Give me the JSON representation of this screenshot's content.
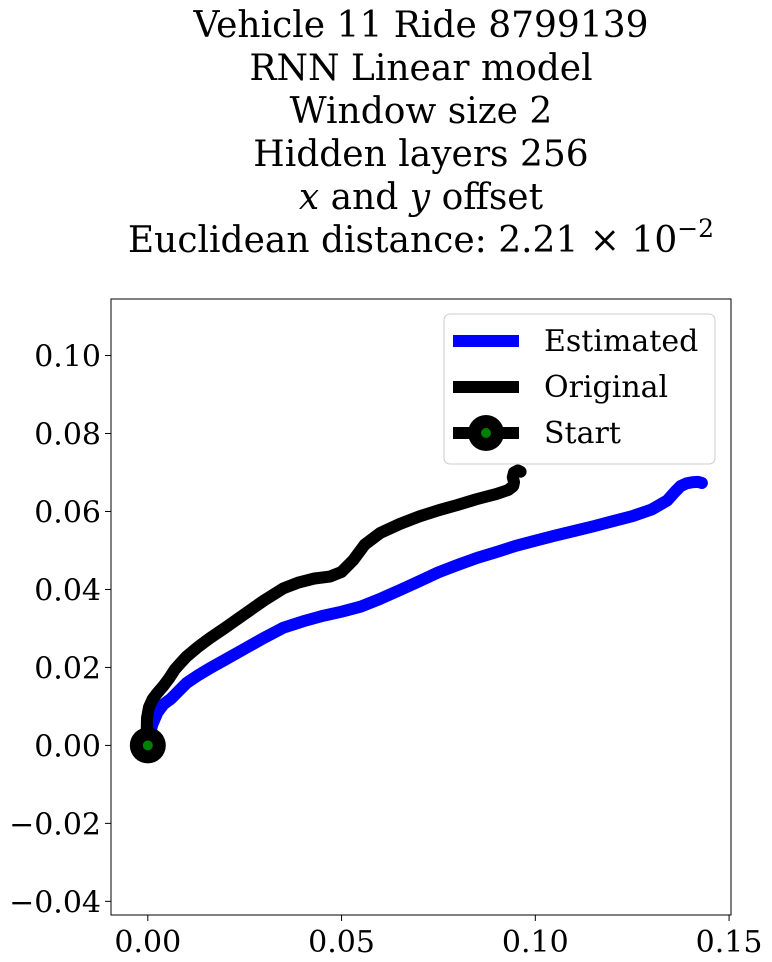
{
  "chart_data": {
    "type": "line",
    "title_lines": [
      "Vehicle 11 Ride 8799139",
      "RNN Linear model",
      "Window size 2",
      "Hidden layers 256"
    ],
    "title_offset_line": {
      "x_var": "x",
      "and_word": " and ",
      "y_var": "y",
      "suffix": " offset"
    },
    "title_distance_line": {
      "prefix": "Euclidean distance: 2.21",
      "times": " × 10",
      "exponent": "−2"
    },
    "xlabel": "",
    "ylabel": "",
    "xlim": [
      -0.0095,
      0.1505
    ],
    "ylim": [
      -0.0435,
      0.1145
    ],
    "xticks": [
      0.0,
      0.05,
      0.1,
      0.15
    ],
    "xtick_labels": [
      "0.00",
      "0.05",
      "0.10",
      "0.15"
    ],
    "yticks": [
      -0.04,
      -0.02,
      0.0,
      0.02,
      0.04,
      0.06,
      0.08,
      0.1
    ],
    "ytick_labels": [
      "−0.04",
      "−0.02",
      "0.00",
      "0.02",
      "0.04",
      "0.06",
      "0.08",
      "0.10"
    ],
    "grid": false,
    "legend_position": "top-right",
    "series": [
      {
        "name": "Estimated",
        "color": "#0000ff",
        "x": [
          0.0,
          0.0004,
          0.0012,
          0.0025,
          0.004,
          0.006,
          0.008,
          0.01,
          0.013,
          0.016,
          0.02,
          0.025,
          0.03,
          0.035,
          0.04,
          0.045,
          0.05,
          0.055,
          0.06,
          0.065,
          0.07,
          0.075,
          0.08,
          0.085,
          0.09,
          0.095,
          0.1,
          0.105,
          0.11,
          0.115,
          0.12,
          0.125,
          0.13,
          0.134,
          0.136,
          0.1375,
          0.139,
          0.1405,
          0.142,
          0.143
        ],
        "y": [
          0.0,
          0.0025,
          0.0055,
          0.0085,
          0.0105,
          0.012,
          0.014,
          0.016,
          0.018,
          0.0198,
          0.022,
          0.0248,
          0.0276,
          0.0302,
          0.0318,
          0.0332,
          0.0343,
          0.0356,
          0.0376,
          0.0398,
          0.0421,
          0.0444,
          0.0463,
          0.0481,
          0.0496,
          0.0512,
          0.0525,
          0.0538,
          0.055,
          0.0562,
          0.0575,
          0.0588,
          0.0605,
          0.0628,
          0.065,
          0.0665,
          0.0672,
          0.0675,
          0.0676,
          0.0673
        ]
      },
      {
        "name": "Original",
        "color": "#000000",
        "x": [
          0.0,
          -0.0003,
          -0.0002,
          0.0003,
          0.0012,
          0.0025,
          0.004,
          0.0055,
          0.007,
          0.0085,
          0.01,
          0.013,
          0.016,
          0.02,
          0.025,
          0.03,
          0.035,
          0.039,
          0.043,
          0.047,
          0.05,
          0.053,
          0.056,
          0.06,
          0.065,
          0.07,
          0.075,
          0.08,
          0.085,
          0.09,
          0.093,
          0.0943,
          0.0945,
          0.0942,
          0.0945,
          0.0955,
          0.0962
        ],
        "y": [
          0.0,
          0.0035,
          0.007,
          0.0098,
          0.0118,
          0.0135,
          0.0152,
          0.0172,
          0.0195,
          0.0212,
          0.0228,
          0.0253,
          0.0275,
          0.0302,
          0.0337,
          0.0372,
          0.0403,
          0.0418,
          0.0428,
          0.0433,
          0.0445,
          0.0475,
          0.0515,
          0.0545,
          0.0568,
          0.0587,
          0.0603,
          0.0617,
          0.0632,
          0.0645,
          0.0655,
          0.0665,
          0.0675,
          0.0688,
          0.07,
          0.0705,
          0.0702
        ]
      }
    ],
    "start_marker": {
      "name": "Start",
      "x": 0.0,
      "y": 0.0,
      "ring_color": "#000000",
      "dot_color": "#008000"
    }
  }
}
